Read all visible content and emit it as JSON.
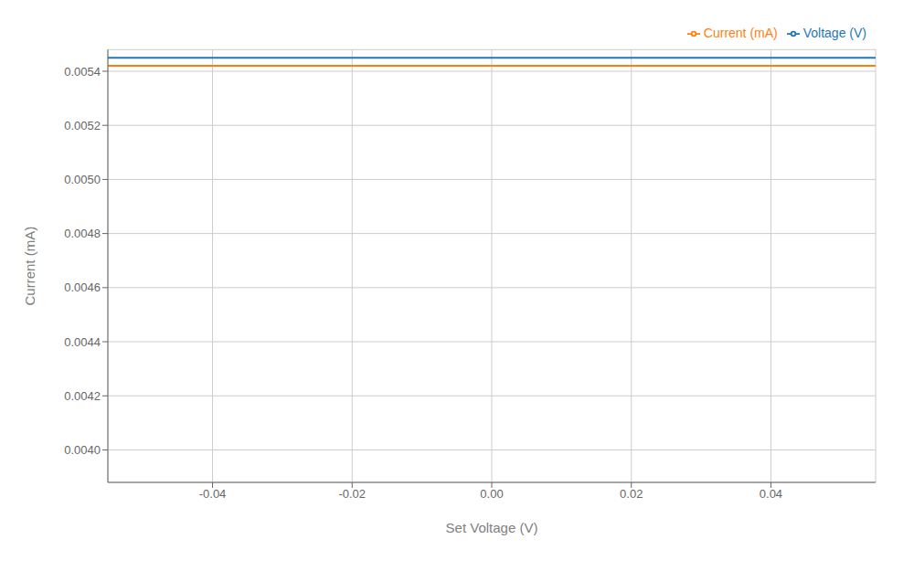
{
  "chart_data": {
    "type": "line",
    "xlabel": "Set Voltage (V)",
    "ylabel": "Current (mA)",
    "x": [
      -0.055,
      0.055
    ],
    "series": [
      {
        "name": "Voltage (V)",
        "color": "#1f77b4",
        "values": [
          0.00545,
          0.00545
        ]
      },
      {
        "name": "Current (mA)",
        "color": "#ff7f0e",
        "values": [
          0.00542,
          0.00542
        ]
      }
    ],
    "xlim": [
      -0.055,
      0.055
    ],
    "ylim": [
      0.00388,
      0.00548
    ],
    "xticks": [
      -0.04,
      -0.02,
      {
        "value": 0,
        "label": "0.00"
      },
      0.02,
      0.04
    ],
    "yticks": [
      {
        "value": 0.004,
        "label": "0.0040"
      },
      0.0042,
      0.0044,
      0.0046,
      0.0048,
      {
        "value": 0.005,
        "label": "0.0050"
      },
      0.0052,
      0.0054
    ],
    "grid": true,
    "legend": "upper right"
  }
}
